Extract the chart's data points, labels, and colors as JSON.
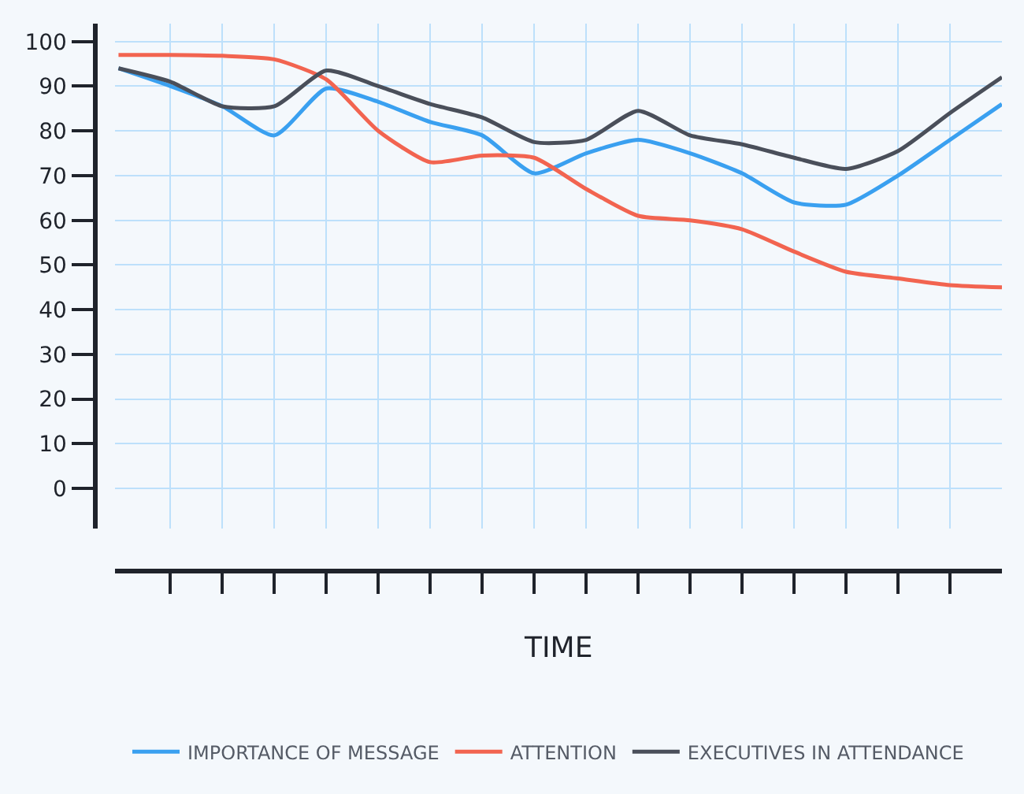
{
  "chart_data": {
    "type": "line",
    "xlabel": "TIME",
    "categories": [
      null,
      null,
      null,
      null,
      null,
      null,
      null,
      null,
      null,
      null,
      null,
      null,
      null,
      null,
      null,
      null,
      null,
      null
    ],
    "series": [
      {
        "name": "IMPORTANCE OF MESSAGE",
        "color": "#3aa0f0",
        "values": [
          94,
          90,
          85.5,
          79,
          89.5,
          86.5,
          82,
          79,
          70.5,
          75,
          78,
          75,
          70.5,
          64,
          63.5,
          70,
          78,
          86
        ]
      },
      {
        "name": "ATTENTION",
        "color": "#f26450",
        "values": [
          97,
          97,
          96.8,
          96,
          91.5,
          80,
          73,
          74.5,
          74,
          67,
          61,
          60,
          58,
          53,
          48.5,
          47,
          45.5,
          45
        ]
      },
      {
        "name": "EXECUTIVES IN ATTENDANCE",
        "color": "#4a4f5a",
        "values": [
          94,
          91,
          85.5,
          85.5,
          93.5,
          90,
          86,
          83,
          77.5,
          78,
          84.5,
          79,
          77,
          74,
          71.5,
          75.5,
          84,
          92
        ]
      }
    ],
    "ylim": [
      -9,
      104
    ],
    "yticks": [
      0,
      10,
      20,
      30,
      40,
      50,
      60,
      70,
      80,
      90,
      100
    ],
    "grid": true,
    "legend": "bottom",
    "tick_labels": "y",
    "line_style": "solid"
  }
}
